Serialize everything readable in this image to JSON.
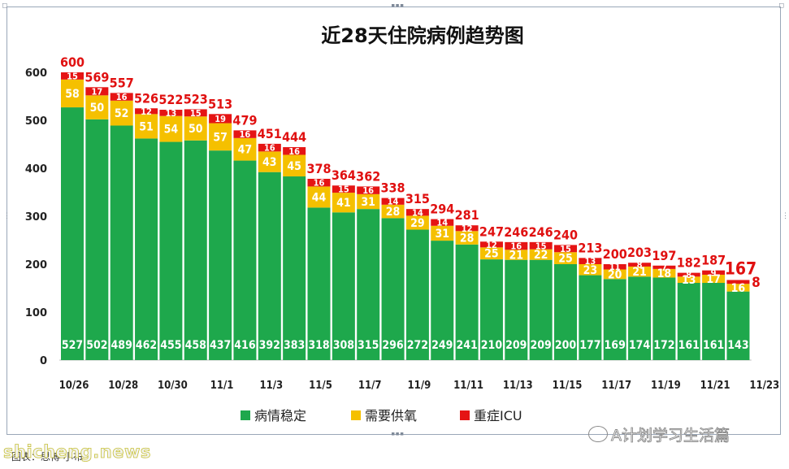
{
  "chart_data": {
    "type": "bar",
    "stacked": true,
    "title": "近28天住院病例趋势图",
    "categories": [
      "10/26",
      "10/27",
      "10/28",
      "10/29",
      "10/30",
      "10/31",
      "11/1",
      "11/2",
      "11/3",
      "11/4",
      "11/5",
      "11/6",
      "11/7",
      "11/8",
      "11/9",
      "11/10",
      "11/11",
      "11/12",
      "11/13",
      "11/14",
      "11/15",
      "11/16",
      "11/17",
      "11/18",
      "11/19",
      "11/20",
      "11/21",
      "11/22"
    ],
    "x_tick_labels": [
      "10/26",
      "10/28",
      "10/30",
      "11/1",
      "11/3",
      "11/5",
      "11/7",
      "11/9",
      "11/11",
      "11/13",
      "11/15",
      "11/17",
      "11/19",
      "11/21",
      "11/23"
    ],
    "series": [
      {
        "name": "病情稳定",
        "color": "#1ea84c",
        "values": [
          527,
          502,
          489,
          462,
          455,
          458,
          437,
          416,
          392,
          383,
          318,
          308,
          315,
          296,
          272,
          249,
          241,
          210,
          209,
          209,
          200,
          177,
          169,
          174,
          172,
          161,
          161,
          143
        ]
      },
      {
        "name": "需要供氧",
        "color": "#f5c000",
        "values": [
          58,
          50,
          52,
          51,
          54,
          50,
          57,
          47,
          43,
          45,
          44,
          41,
          31,
          28,
          29,
          31,
          28,
          25,
          21,
          22,
          25,
          23,
          20,
          21,
          18,
          13,
          17,
          16
        ]
      },
      {
        "name": "重症ICU",
        "color": "#e51414",
        "values": [
          15,
          17,
          16,
          12,
          13,
          15,
          19,
          16,
          16,
          16,
          16,
          15,
          16,
          14,
          14,
          14,
          12,
          12,
          16,
          15,
          15,
          13,
          11,
          8,
          7,
          8,
          9,
          8
        ]
      }
    ],
    "totals": [
      600,
      569,
      557,
      526,
      522,
      523,
      513,
      479,
      451,
      444,
      378,
      364,
      362,
      338,
      315,
      294,
      281,
      247,
      246,
      246,
      240,
      213,
      200,
      203,
      197,
      182,
      187,
      167
    ],
    "yticks": [
      0,
      100,
      200,
      300,
      400,
      500,
      600
    ],
    "ylim": [
      0,
      640
    ],
    "legend_position": "bottom",
    "grid": false
  },
  "footer": {
    "source": "图表：思博·小布",
    "watermark_left": "shicheng.news",
    "watermark_right": "A计划学习生活篇"
  }
}
